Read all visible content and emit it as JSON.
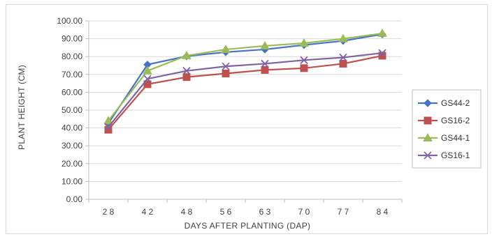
{
  "chart_data": {
    "type": "line",
    "title": "",
    "xlabel": "DAYS AFTER PLANTING (DAP)",
    "ylabel": "PLANT HEIGHT (CM)",
    "categories": [
      "2 8",
      "4 2",
      "4 8",
      "5 6",
      "6 3",
      "7 0",
      "7 7",
      "8 4"
    ],
    "ylim": [
      0,
      100
    ],
    "ytick_step": 10,
    "ytick_labels": [
      "0.00",
      "10.00",
      "20.00",
      "30.00",
      "40.00",
      "50.00",
      "60.00",
      "70.00",
      "80.00",
      "90.00",
      "100.00"
    ],
    "grid": "horizontal",
    "legend_position": "right",
    "series": [
      {
        "name": "GS44-2",
        "color": "#4472C4",
        "marker": "diamond",
        "values": [
          42.5,
          75.5,
          80.2,
          82.5,
          84.0,
          86.5,
          88.8,
          92.5
        ]
      },
      {
        "name": "GS16-2",
        "color": "#C0504D",
        "marker": "square",
        "values": [
          39.0,
          64.5,
          68.5,
          70.5,
          72.5,
          73.5,
          76.0,
          80.5
        ]
      },
      {
        "name": "GS44-1",
        "color": "#9BBB59",
        "marker": "triangle",
        "values": [
          44.0,
          72.0,
          80.5,
          84.0,
          86.0,
          87.5,
          90.0,
          93.0
        ]
      },
      {
        "name": "GS16-1",
        "color": "#8064A2",
        "marker": "x",
        "values": [
          40.5,
          67.5,
          72.0,
          74.5,
          76.0,
          78.0,
          79.5,
          82.0
        ]
      }
    ]
  }
}
